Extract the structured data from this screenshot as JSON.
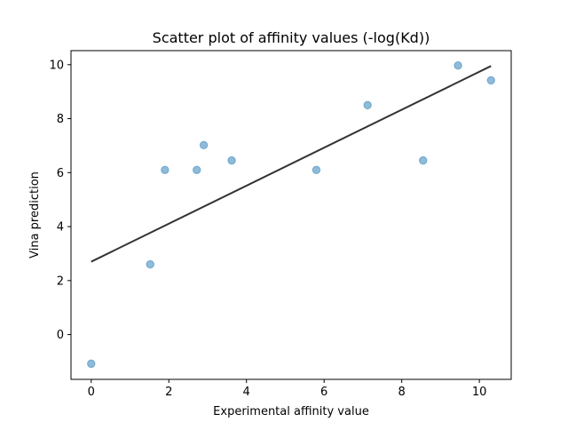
{
  "chart_data": {
    "type": "scatter",
    "title": "Scatter plot of affinity values (-log(Kd))",
    "xlabel": "Experimental affinity value",
    "ylabel": "Vina prediction",
    "xlim": [
      -0.52,
      10.82
    ],
    "ylim": [
      -1.66,
      10.52
    ],
    "xticks": [
      0,
      2,
      4,
      6,
      8,
      10
    ],
    "yticks": [
      0,
      2,
      4,
      6,
      8,
      10
    ],
    "grid": false,
    "series": [
      {
        "kind": "points",
        "color": "#1f77b4",
        "points": [
          {
            "x": 0.0,
            "y": -1.08
          },
          {
            "x": 1.52,
            "y": 2.6
          },
          {
            "x": 1.9,
            "y": 6.1
          },
          {
            "x": 2.72,
            "y": 6.1
          },
          {
            "x": 2.9,
            "y": 7.02
          },
          {
            "x": 3.62,
            "y": 6.45
          },
          {
            "x": 5.8,
            "y": 6.1
          },
          {
            "x": 7.12,
            "y": 8.5
          },
          {
            "x": 8.55,
            "y": 6.45
          },
          {
            "x": 9.45,
            "y": 9.97
          },
          {
            "x": 10.3,
            "y": 9.42
          }
        ]
      },
      {
        "kind": "fit-line",
        "color": "#333333",
        "points": [
          {
            "x": 0.0,
            "y": 2.7
          },
          {
            "x": 10.3,
            "y": 9.95
          }
        ]
      }
    ]
  }
}
